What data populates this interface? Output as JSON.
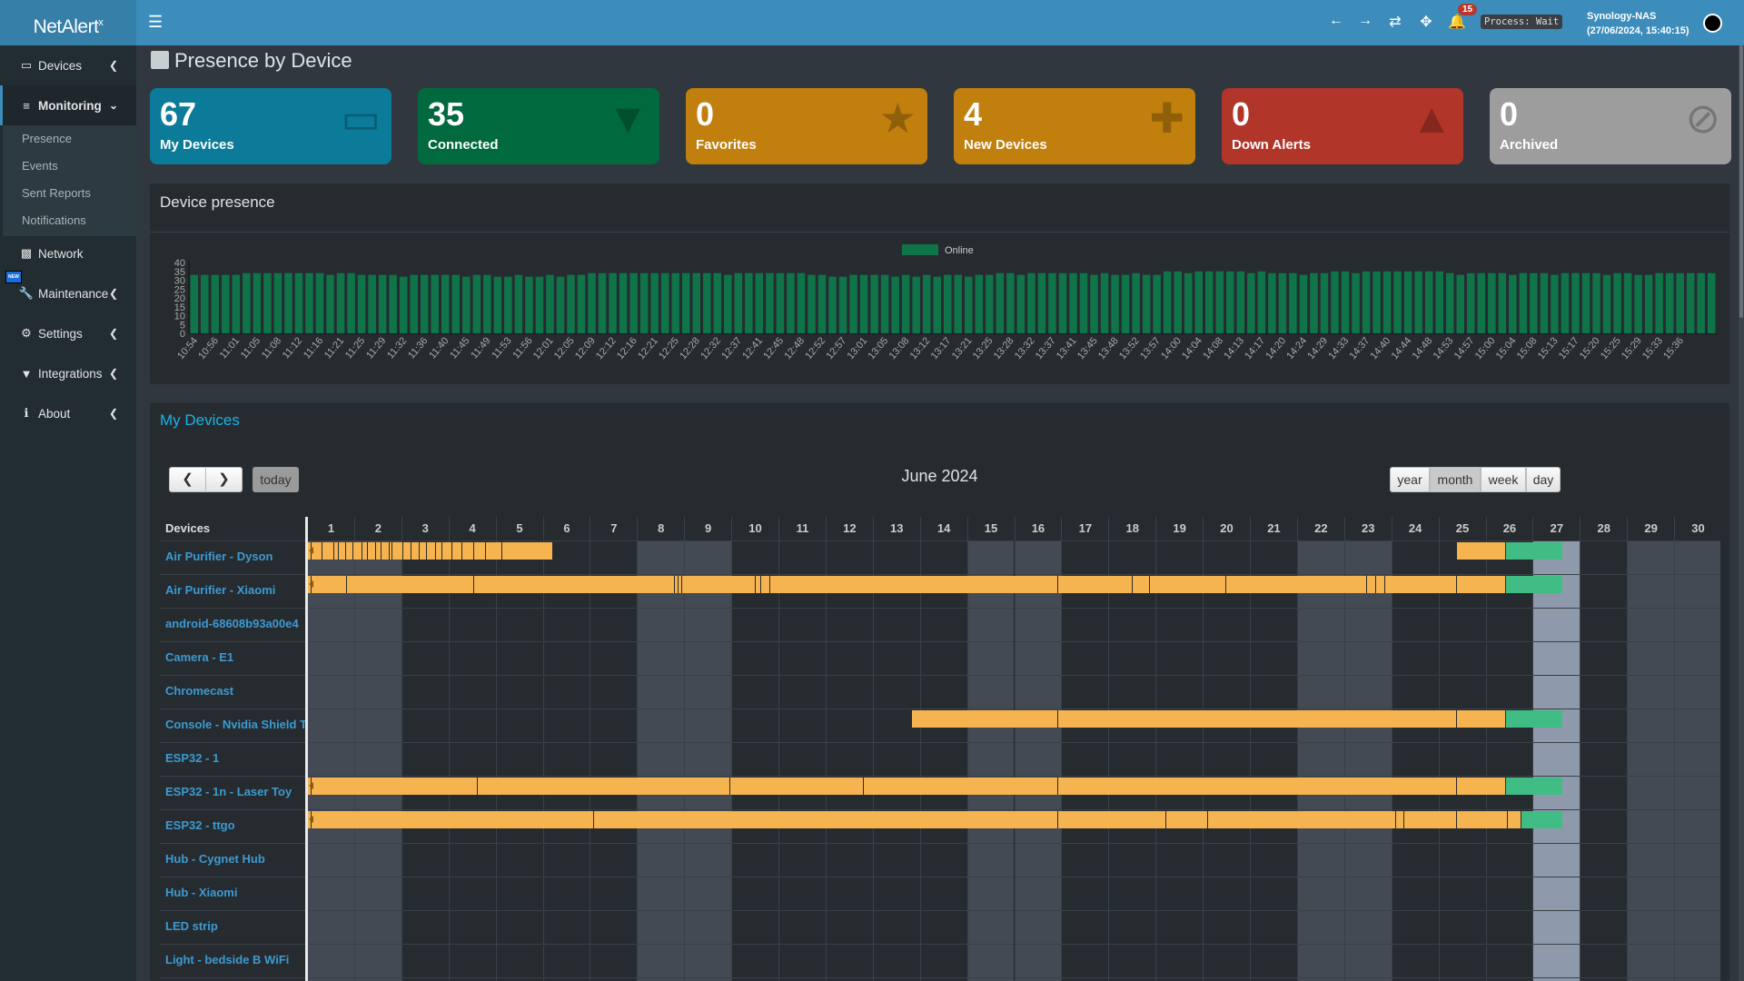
{
  "app": {
    "name": "NetAlert",
    "name_sup": "x"
  },
  "header": {
    "notifications_count": "15",
    "process_status": "Process: Wait",
    "host": "Synology-NAS",
    "datetime": "(27/06/2024, 15:40:15)"
  },
  "sidebar": {
    "items": [
      {
        "label": "Devices",
        "icon": "laptop-icon"
      },
      {
        "label": "Monitoring",
        "icon": "chart-icon"
      },
      {
        "label": "Network",
        "icon": "sitemap-icon"
      },
      {
        "label": "Maintenance",
        "icon": "wrench-icon",
        "badge": "NEW"
      },
      {
        "label": "Settings",
        "icon": "gear-icon"
      },
      {
        "label": "Integrations",
        "icon": "plug-icon"
      },
      {
        "label": "About",
        "icon": "info-icon"
      }
    ],
    "monitoring_sub": [
      "Presence",
      "Events",
      "Sent Reports",
      "Notifications"
    ]
  },
  "page": {
    "title": "Presence by Device"
  },
  "cards": [
    {
      "value": "67",
      "label": "My Devices",
      "color": "#0b7b99",
      "icon": "laptop-icon"
    },
    {
      "value": "35",
      "label": "Connected",
      "color": "#00693d",
      "icon": "plug-icon"
    },
    {
      "value": "0",
      "label": "Favorites",
      "color": "#c17f0e",
      "icon": "star-icon"
    },
    {
      "value": "4",
      "label": "New Devices",
      "color": "#c17f0e",
      "icon": "plus-icon"
    },
    {
      "value": "0",
      "label": "Down Alerts",
      "color": "#b23529",
      "icon": "warning-icon"
    },
    {
      "value": "0",
      "label": "Archived",
      "color": "#9d9d9d",
      "icon": "eye-slash-icon"
    }
  ],
  "chart_data": {
    "type": "bar",
    "title": "Device presence",
    "legend": [
      {
        "name": "Online",
        "color": "#0f7449"
      }
    ],
    "legend_placement": "top-center",
    "ylim": [
      0,
      40
    ],
    "yticks": [
      0,
      5,
      10,
      15,
      20,
      25,
      30,
      35,
      40
    ],
    "x_tick_labels": [
      "10:54",
      "10:56",
      "11:01",
      "11:05",
      "11:08",
      "11:12",
      "11:16",
      "11:21",
      "11:25",
      "11:29",
      "11:32",
      "11:36",
      "11:40",
      "11:45",
      "11:49",
      "11:53",
      "11:56",
      "12:01",
      "12:05",
      "12:09",
      "12:12",
      "12:16",
      "12:21",
      "12:25",
      "12:28",
      "12:32",
      "12:37",
      "12:41",
      "12:45",
      "12:48",
      "12:52",
      "12:57",
      "13:01",
      "13:05",
      "13:08",
      "13:12",
      "13:17",
      "13:21",
      "13:25",
      "13:28",
      "13:32",
      "13:37",
      "13:41",
      "13:45",
      "13:48",
      "13:52",
      "13:57",
      "14:00",
      "14:04",
      "14:08",
      "14:13",
      "14:17",
      "14:20",
      "14:24",
      "14:29",
      "14:33",
      "14:37",
      "14:40",
      "14:44",
      "14:48",
      "14:53",
      "14:57",
      "15:00",
      "15:04",
      "15:08",
      "15:13",
      "15:17",
      "15:20",
      "15:25",
      "15:29",
      "15:33",
      "15:36"
    ],
    "series": [
      {
        "name": "Online",
        "values": [
          33,
          33,
          33,
          33,
          33,
          34,
          34,
          34,
          34,
          34,
          34,
          34,
          34,
          33,
          34,
          34,
          33,
          33,
          33,
          33,
          32,
          33,
          33,
          33,
          33,
          33,
          32,
          33,
          33,
          32,
          32,
          33,
          32,
          32,
          33,
          32,
          33,
          33,
          34,
          34,
          34,
          34,
          34,
          34,
          34,
          34,
          34,
          34,
          34,
          34,
          34,
          33,
          34,
          34,
          34,
          34,
          34,
          34,
          34,
          33,
          33,
          32,
          32,
          33,
          33,
          33,
          33,
          32,
          33,
          32,
          33,
          32,
          33,
          33,
          32,
          33,
          33,
          34,
          34,
          33,
          34,
          34,
          34,
          34,
          34,
          34,
          33,
          34,
          33,
          33,
          34,
          33,
          33,
          35,
          35,
          34,
          35,
          35,
          35,
          35,
          35,
          34,
          35,
          34,
          34,
          34,
          33,
          34,
          34,
          35,
          35,
          34,
          35,
          35,
          35,
          35,
          35,
          35,
          35,
          35,
          34,
          33,
          34,
          34,
          34,
          34,
          33,
          34,
          34,
          34,
          33,
          34,
          34,
          34,
          34,
          33,
          34,
          34,
          33,
          33,
          34,
          34,
          34,
          34,
          34,
          34
        ]
      }
    ]
  },
  "devices_panel": {
    "title": "My Devices",
    "month_title": "June 2024",
    "today_label": "today",
    "views": [
      "year",
      "month",
      "week",
      "day"
    ],
    "active_view": "month",
    "devices_header": "Devices",
    "days": [
      1,
      2,
      3,
      4,
      5,
      6,
      7,
      8,
      9,
      10,
      11,
      12,
      13,
      14,
      15,
      16,
      17,
      18,
      19,
      20,
      21,
      22,
      23,
      24,
      25,
      26,
      27,
      28,
      29,
      30
    ],
    "weekend_days": [
      1,
      2,
      8,
      9,
      15,
      16,
      22,
      23,
      29,
      30
    ],
    "today": 27,
    "colors": {
      "presence": "#f5b44f",
      "online_now": "#40bd84",
      "today_bg": "#8e9aab",
      "weekend_bg": "#434a54"
    },
    "devices": [
      {
        "name": "Air Purifier - Dyson",
        "from_prev": true,
        "breaks": [
          1.09,
          1.33,
          1.57,
          1.68,
          1.83,
          1.99,
          2.18,
          2.3,
          2.46,
          2.58,
          2.75,
          2.82,
          3.05,
          3.22,
          3.38,
          3.55,
          3.74,
          3.88,
          4.09,
          4.3,
          4.54,
          4.8,
          5.15,
          6.22
        ],
        "segments_after": [
          [
            6.36,
            6.4
          ],
          [
            6.43,
            16.93
          ],
          [
            16.93,
            25.4
          ],
          [
            25.4,
            26.44
          ]
        ],
        "online": [
          26.44,
          27.62
        ]
      },
      {
        "name": "Air Purifier - Xiaomi",
        "from_prev": true,
        "breaks": [
          1.09,
          1.85,
          4.54,
          8.81,
          8.88,
          8.95,
          10.51,
          10.63,
          10.82,
          16.93,
          18.51,
          18.89,
          20.5,
          23.49,
          23.68,
          23.87,
          25.4,
          26.44
        ],
        "online": [
          26.44,
          27.62
        ]
      },
      {
        "name": "android-68608b93a00e4",
        "breaks": []
      },
      {
        "name": "Camera - E1",
        "breaks": []
      },
      {
        "name": "Chromecast",
        "breaks": []
      },
      {
        "name": "Console - Nvidia Shield TV",
        "breaks": [
          13.84,
          16.93,
          25.4,
          26.44
        ],
        "online": [
          26.44,
          27.62
        ]
      },
      {
        "name": "ESP32 - 1",
        "breaks": []
      },
      {
        "name": "ESP32 - 1n - Laser Toy",
        "from_prev": true,
        "breaks": [
          1.09,
          4.63,
          9.97,
          12.82,
          16.93,
          25.4,
          26.44
        ],
        "online": [
          26.44,
          27.62
        ]
      },
      {
        "name": "ESP32 - ttgo",
        "from_prev": true,
        "breaks": [
          1.09,
          7.09,
          16.93,
          19.22,
          20.12,
          24.11,
          24.27,
          25.4,
          26.47,
          26.77
        ],
        "online": [
          26.77,
          27.62
        ]
      },
      {
        "name": "Hub - Cygnet Hub",
        "breaks": []
      },
      {
        "name": "Hub - Xiaomi",
        "breaks": []
      },
      {
        "name": "LED strip",
        "breaks": []
      },
      {
        "name": "Light - bedside B WiFi",
        "breaks": []
      },
      {
        "name": "",
        "breaks": []
      }
    ]
  }
}
